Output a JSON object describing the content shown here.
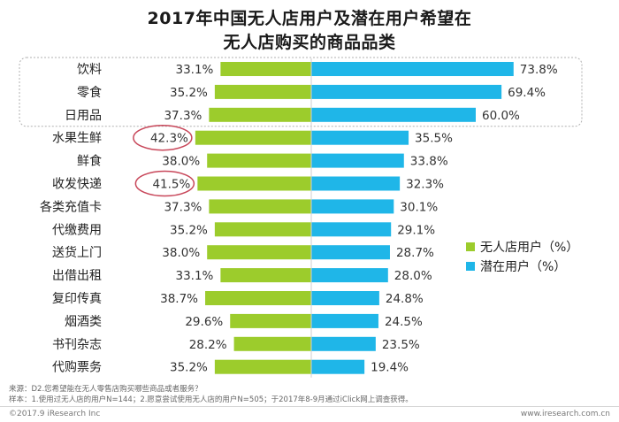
{
  "title_line1": "2017年中国无人店用户及潜在用户希望在",
  "title_line2": "无人店购买的商品品类",
  "legend": {
    "green": "无人店用户（%）",
    "blue": "潜在用户（%）"
  },
  "colors": {
    "green": "#9ccc2c",
    "blue": "#1fb6e8",
    "highlight": "#c8475a",
    "box": "#b0b0b0"
  },
  "chart_data": {
    "type": "bar",
    "categories": [
      "饮料",
      "零食",
      "日用品",
      "水果生鲜",
      "鲜食",
      "收发快递",
      "各类充值卡",
      "代缴费用",
      "送货上门",
      "出借出租",
      "复印传真",
      "烟酒类",
      "书刊杂志",
      "代购票务"
    ],
    "series": [
      {
        "name": "无人店用户（%）",
        "values": [
          33.1,
          35.2,
          37.3,
          42.3,
          38.0,
          41.5,
          37.3,
          35.2,
          38.0,
          33.1,
          38.7,
          29.6,
          28.2,
          35.2
        ]
      },
      {
        "name": "潜在用户（%）",
        "values": [
          73.8,
          69.4,
          60.0,
          35.5,
          33.8,
          32.3,
          30.1,
          29.1,
          28.7,
          28.0,
          24.8,
          24.5,
          23.5,
          19.4
        ]
      }
    ],
    "value_labels": {
      "green": [
        "33.1%",
        "35.2%",
        "37.3%",
        "42.3%",
        "38.0%",
        "41.5%",
        "37.3%",
        "35.2%",
        "38.0%",
        "33.1%",
        "38.7%",
        "29.6%",
        "28.2%",
        "35.2%"
      ],
      "blue": [
        "73.8%",
        "69.4%",
        "60.0%",
        "35.5%",
        "33.8%",
        "32.3%",
        "30.1%",
        "29.1%",
        "28.7%",
        "28.0%",
        "24.8%",
        "24.5%",
        "23.5%",
        "19.4%"
      ]
    },
    "highlighted_categories": [
      "水果生鲜",
      "收发快递"
    ],
    "boxed_categories": [
      "饮料",
      "零食",
      "日用品"
    ]
  },
  "footnote": {
    "source": "来源：D2.您希望能在无人零售店购买哪些商品或者服务？",
    "sample": "样本：1.使用过无人店的用户N=144；2.愿意尝试使用无人店的用户N=505；于2017年8-9月通过iClick网上调查获得。"
  },
  "footer": {
    "copyright": "©2017.9 iResearch Inc",
    "site": "www.iresearch.com.cn"
  }
}
